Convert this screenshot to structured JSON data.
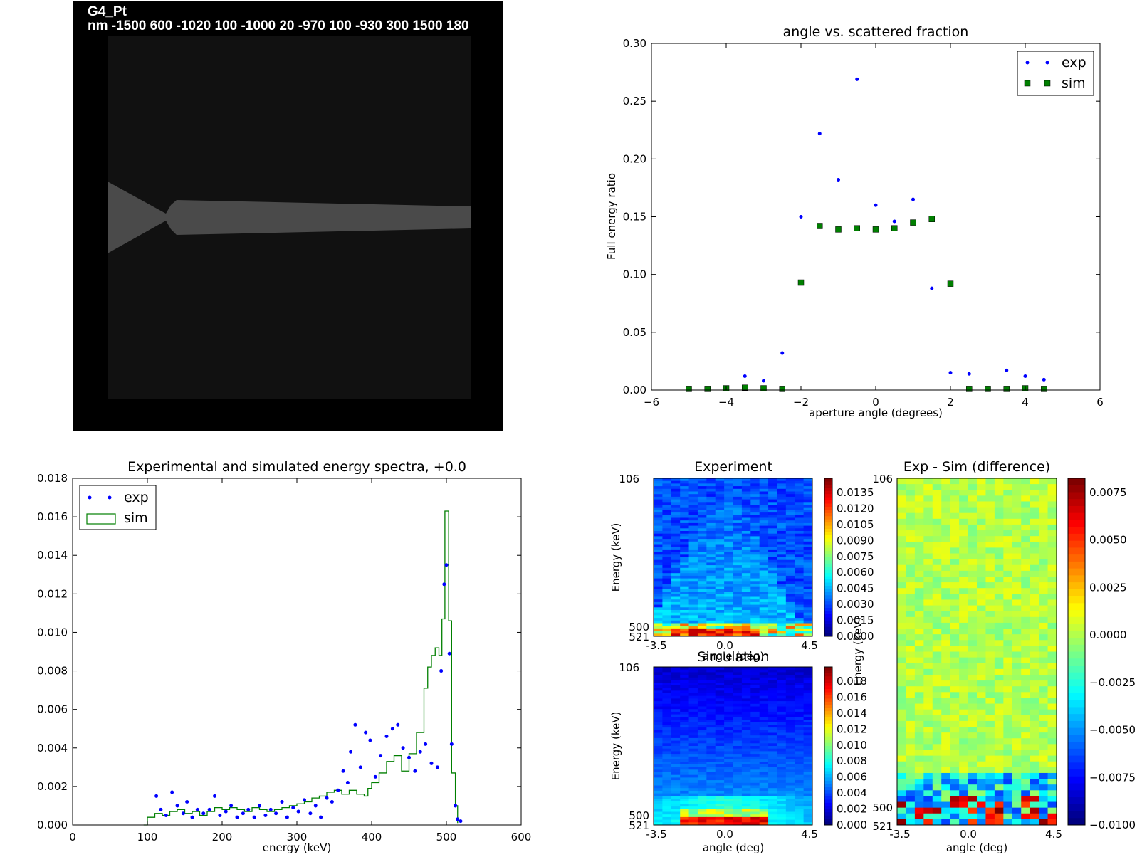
{
  "geometry_panel": {
    "title": "G4_Pt",
    "parameters": "nm -1500 600 -1020 100 -1000 20 -970 100 -930 300 1500 180"
  },
  "chart_data": [
    {
      "id": "scatter",
      "type": "scatter",
      "title": "angle vs. scattered fraction",
      "xlabel": "aperture angle (degrees)",
      "ylabel": "Full energy ratio",
      "xlim": [
        -6,
        6
      ],
      "ylim": [
        0,
        0.3
      ],
      "xticks": [
        "−6",
        "−4",
        "−2",
        "0",
        "2",
        "4",
        "6"
      ],
      "xtick_values": [
        -6,
        -4,
        -2,
        0,
        2,
        4,
        6
      ],
      "yticks": [
        "0.00",
        "0.05",
        "0.10",
        "0.15",
        "0.20",
        "0.25",
        "0.30"
      ],
      "ytick_values": [
        0,
        0.05,
        0.1,
        0.15,
        0.2,
        0.25,
        0.3
      ],
      "legend": "top-right",
      "series": [
        {
          "name": "exp",
          "marker": "dot",
          "color": "#0000ff",
          "points": [
            [
              -3.5,
              0.012
            ],
            [
              -3,
              0.008
            ],
            [
              -2.5,
              0.032
            ],
            [
              -2,
              0.15
            ],
            [
              -1.5,
              0.222
            ],
            [
              -1,
              0.182
            ],
            [
              -0.5,
              0.269
            ],
            [
              0,
              0.16
            ],
            [
              0.5,
              0.146
            ],
            [
              1,
              0.165
            ],
            [
              1.5,
              0.088
            ],
            [
              2,
              0.015
            ],
            [
              2.5,
              0.014
            ],
            [
              3,
              0.002
            ],
            [
              3.5,
              0.017
            ],
            [
              4,
              0.012
            ],
            [
              4.5,
              0.009
            ]
          ]
        },
        {
          "name": "sim",
          "marker": "square",
          "color": "#007f00",
          "points": [
            [
              -5,
              0.001
            ],
            [
              -4.5,
              0.001
            ],
            [
              -4,
              0.0015
            ],
            [
              -3.5,
              0.002
            ],
            [
              -3,
              0.0015
            ],
            [
              -2.5,
              0.001
            ],
            [
              -2,
              0.093
            ],
            [
              -1.5,
              0.142
            ],
            [
              -1,
              0.139
            ],
            [
              -0.5,
              0.14
            ],
            [
              0,
              0.139
            ],
            [
              0.5,
              0.14
            ],
            [
              1,
              0.145
            ],
            [
              1.5,
              0.148
            ],
            [
              2,
              0.092
            ],
            [
              2.5,
              0.001
            ],
            [
              3,
              0.001
            ],
            [
              3.5,
              0.001
            ],
            [
              4,
              0.0015
            ],
            [
              4.5,
              0.001
            ]
          ]
        }
      ]
    },
    {
      "id": "spectra",
      "type": "line",
      "title": "Experimental and simulated energy spectra, +0.0",
      "xlabel": "energy (keV)",
      "ylabel": "",
      "xlim": [
        0,
        600
      ],
      "ylim": [
        0,
        0.018
      ],
      "xticks": [
        "0",
        "100",
        "200",
        "300",
        "400",
        "500",
        "600"
      ],
      "xtick_values": [
        0,
        100,
        200,
        300,
        400,
        500,
        600
      ],
      "yticks": [
        "0.000",
        "0.002",
        "0.004",
        "0.006",
        "0.008",
        "0.010",
        "0.012",
        "0.014",
        "0.016",
        "0.018"
      ],
      "ytick_values": [
        0,
        0.002,
        0.004,
        0.006,
        0.008,
        0.01,
        0.012,
        0.014,
        0.016,
        0.018
      ],
      "legend": "top-left",
      "series": [
        {
          "name": "exp",
          "marker": "dot",
          "color": "#0000ff",
          "points": [
            [
              112,
              0.0015
            ],
            [
              118,
              0.0008
            ],
            [
              125,
              0.0005
            ],
            [
              133,
              0.0017
            ],
            [
              140,
              0.001
            ],
            [
              148,
              0.0006
            ],
            [
              153,
              0.0012
            ],
            [
              160,
              0.0004
            ],
            [
              167,
              0.0008
            ],
            [
              175,
              0.0006
            ],
            [
              183,
              0.0008
            ],
            [
              190,
              0.0015
            ],
            [
              197,
              0.0005
            ],
            [
              205,
              0.0007
            ],
            [
              212,
              0.001
            ],
            [
              220,
              0.0004
            ],
            [
              228,
              0.0006
            ],
            [
              235,
              0.0008
            ],
            [
              243,
              0.0004
            ],
            [
              250,
              0.001
            ],
            [
              258,
              0.0005
            ],
            [
              265,
              0.0008
            ],
            [
              272,
              0.0006
            ],
            [
              280,
              0.0012
            ],
            [
              287,
              0.0004
            ],
            [
              295,
              0.0009
            ],
            [
              302,
              0.0007
            ],
            [
              310,
              0.0013
            ],
            [
              318,
              0.0006
            ],
            [
              325,
              0.001
            ],
            [
              332,
              0.0004
            ],
            [
              340,
              0.0014
            ],
            [
              347,
              0.0012
            ],
            [
              355,
              0.0018
            ],
            [
              362,
              0.0028
            ],
            [
              368,
              0.0022
            ],
            [
              372,
              0.0038
            ],
            [
              378,
              0.0052
            ],
            [
              385,
              0.003
            ],
            [
              392,
              0.0048
            ],
            [
              398,
              0.0044
            ],
            [
              405,
              0.0025
            ],
            [
              412,
              0.0036
            ],
            [
              420,
              0.0046
            ],
            [
              428,
              0.005
            ],
            [
              435,
              0.0052
            ],
            [
              442,
              0.004
            ],
            [
              450,
              0.0035
            ],
            [
              458,
              0.0028
            ],
            [
              465,
              0.0038
            ],
            [
              472,
              0.0042
            ],
            [
              480,
              0.0032
            ],
            [
              488,
              0.003
            ],
            [
              493,
              0.008
            ],
            [
              497,
              0.0125
            ],
            [
              500,
              0.0135
            ],
            [
              504,
              0.0089
            ],
            [
              507,
              0.0042
            ],
            [
              512,
              0.001
            ],
            [
              515,
              0.0003
            ],
            [
              519,
              0.0002
            ]
          ]
        },
        {
          "name": "sim",
          "marker": "step",
          "color": "#007f00",
          "points": [
            [
              95,
              0.0
            ],
            [
              100,
              0.0004
            ],
            [
              110,
              0.0006
            ],
            [
              120,
              0.0005
            ],
            [
              130,
              0.0007
            ],
            [
              140,
              0.0008
            ],
            [
              150,
              0.0006
            ],
            [
              160,
              0.0007
            ],
            [
              170,
              0.0005
            ],
            [
              180,
              0.0007
            ],
            [
              190,
              0.0009
            ],
            [
              200,
              0.0008
            ],
            [
              210,
              0.0009
            ],
            [
              220,
              0.0008
            ],
            [
              230,
              0.0007
            ],
            [
              240,
              0.0009
            ],
            [
              250,
              0.0008
            ],
            [
              260,
              0.0007
            ],
            [
              270,
              0.0008
            ],
            [
              280,
              0.0009
            ],
            [
              290,
              0.001
            ],
            [
              300,
              0.0011
            ],
            [
              310,
              0.0012
            ],
            [
              320,
              0.0014
            ],
            [
              330,
              0.0015
            ],
            [
              340,
              0.0017
            ],
            [
              350,
              0.0018
            ],
            [
              360,
              0.0016
            ],
            [
              370,
              0.0018
            ],
            [
              380,
              0.0016
            ],
            [
              390,
              0.0015
            ],
            [
              395,
              0.0019
            ],
            [
              400,
              0.0022
            ],
            [
              410,
              0.0027
            ],
            [
              420,
              0.0033
            ],
            [
              430,
              0.0036
            ],
            [
              440,
              0.0028
            ],
            [
              450,
              0.0037
            ],
            [
              460,
              0.0048
            ],
            [
              470,
              0.0071
            ],
            [
              475,
              0.0082
            ],
            [
              480,
              0.0088
            ],
            [
              485,
              0.0092
            ],
            [
              490,
              0.0088
            ],
            [
              494,
              0.0107
            ],
            [
              498,
              0.0163
            ],
            [
              503,
              0.0106
            ],
            [
              507,
              0.0027
            ],
            [
              512,
              0.001
            ],
            [
              515,
              0.0001
            ]
          ]
        }
      ]
    },
    {
      "id": "heatmap-exp",
      "type": "heatmap",
      "title": "Experiment",
      "xlabel": "angle (deg)",
      "ylabel": "Energy (keV)",
      "xticks": [
        "-3.5",
        "0.0",
        "4.5"
      ],
      "yticks": [
        "106",
        "500",
        "521"
      ],
      "colorbar": [
        "0.0135",
        "0.0120",
        "0.0105",
        "0.0090",
        "0.0075",
        "0.0060",
        "0.0045",
        "0.0030",
        "0.0015",
        "0.0000"
      ]
    },
    {
      "id": "heatmap-sim",
      "type": "heatmap",
      "title": "Simulation",
      "xlabel": "angle (deg)",
      "ylabel": "Energy (keV)",
      "xticks": [
        "-3.5",
        "0.0",
        "4.5"
      ],
      "yticks": [
        "106",
        "500",
        "521"
      ],
      "colorbar": [
        "0.018",
        "0.016",
        "0.014",
        "0.012",
        "0.010",
        "0.008",
        "0.006",
        "0.004",
        "0.002",
        "0.000"
      ]
    },
    {
      "id": "heatmap-diff",
      "type": "heatmap",
      "title": "Exp - Sim (difference)",
      "xlabel": "angle (deg)",
      "ylabel": "Energy (keV)",
      "xticks": [
        "-3.5",
        "0.0",
        "4.5"
      ],
      "yticks": [
        "106",
        "500",
        "521"
      ],
      "colorbar": [
        "0.0075",
        "0.0050",
        "0.0025",
        "0.0000",
        "−0.0025",
        "−0.0050",
        "−0.0075",
        "−0.0100"
      ]
    }
  ]
}
